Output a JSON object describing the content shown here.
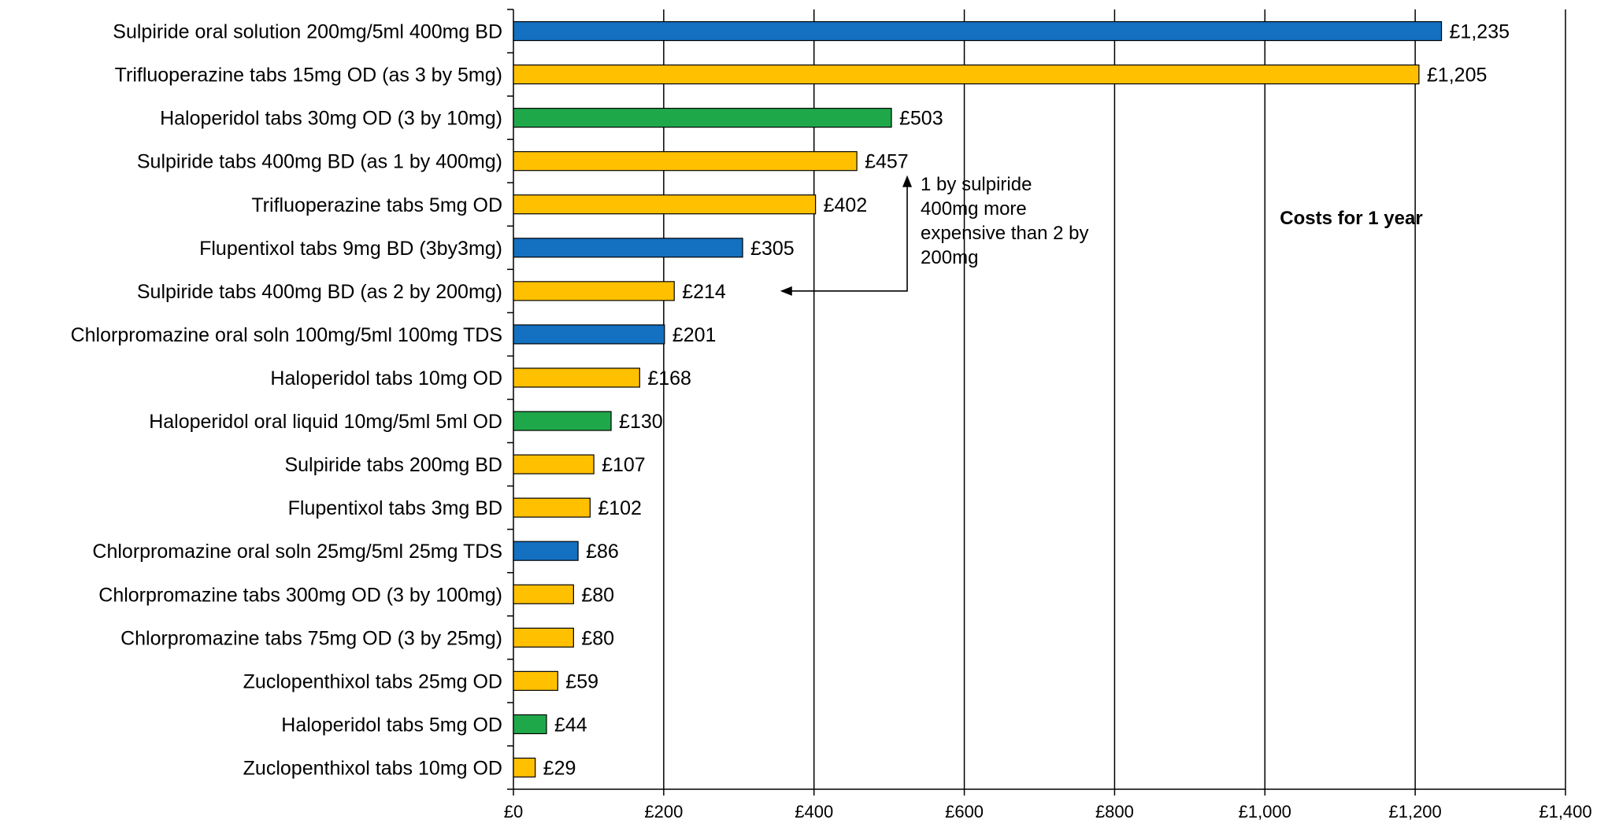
{
  "chart_data": {
    "type": "bar",
    "orientation": "horizontal",
    "title": "Costs for 1 year",
    "title_position": "inside-plot-right",
    "xlabel": "",
    "ylabel": "",
    "xlim": [
      0,
      1400
    ],
    "x_ticks": [
      0,
      200,
      400,
      600,
      800,
      1000,
      1200,
      1400
    ],
    "x_tick_labels": [
      "£0",
      "£200",
      "£400",
      "£600",
      "£800",
      "£1,000",
      "£1,200",
      "£1,400"
    ],
    "grid": "vertical-major",
    "legend": "none",
    "colors": {
      "blue": "#1470C0",
      "yellow": "#FFC000",
      "green": "#1FA84A",
      "gridline": "#000000",
      "axis": "#000000"
    },
    "bars": [
      {
        "label": "Sulpiride oral solution 200mg/5ml 400mg BD",
        "value": 1235,
        "value_label": "£1,235",
        "color": "blue"
      },
      {
        "label": "Trifluoperazine tabs 15mg OD (as 3 by 5mg)",
        "value": 1205,
        "value_label": "£1,205",
        "color": "yellow"
      },
      {
        "label": "Haloperidol tabs 30mg OD (3 by 10mg)",
        "value": 503,
        "value_label": "£503",
        "color": "green"
      },
      {
        "label": "Sulpiride tabs 400mg BD (as 1 by 400mg)",
        "value": 457,
        "value_label": "£457",
        "color": "yellow"
      },
      {
        "label": "Trifluoperazine tabs 5mg OD",
        "value": 402,
        "value_label": "£402",
        "color": "yellow"
      },
      {
        "label": "Flupentixol tabs 9mg BD (3by3mg)",
        "value": 305,
        "value_label": "£305",
        "color": "blue"
      },
      {
        "label": "Sulpiride tabs 400mg BD (as 2 by 200mg)",
        "value": 214,
        "value_label": "£214",
        "color": "yellow"
      },
      {
        "label": "Chlorpromazine oral soln 100mg/5ml 100mg TDS",
        "value": 201,
        "value_label": "£201",
        "color": "blue"
      },
      {
        "label": "Haloperidol tabs 10mg OD",
        "value": 168,
        "value_label": "£168",
        "color": "yellow"
      },
      {
        "label": "Haloperidol oral liquid 10mg/5ml 5ml OD",
        "value": 130,
        "value_label": "£130",
        "color": "green"
      },
      {
        "label": "Sulpiride tabs 200mg BD",
        "value": 107,
        "value_label": "£107",
        "color": "yellow"
      },
      {
        "label": "Flupentixol tabs 3mg BD",
        "value": 102,
        "value_label": "£102",
        "color": "yellow"
      },
      {
        "label": "Chlorpromazine oral soln 25mg/5ml 25mg TDS",
        "value": 86,
        "value_label": "£86",
        "color": "blue"
      },
      {
        "label": "Chlorpromazine tabs 300mg OD (3 by 100mg)",
        "value": 80,
        "value_label": "£80",
        "color": "yellow"
      },
      {
        "label": "Chlorpromazine tabs 75mg OD (3 by 25mg)",
        "value": 80,
        "value_label": "£80",
        "color": "yellow"
      },
      {
        "label": "Zuclopenthixol tabs 25mg OD",
        "value": 59,
        "value_label": "£59",
        "color": "yellow"
      },
      {
        "label": "Haloperidol tabs 5mg OD",
        "value": 44,
        "value_label": "£44",
        "color": "green"
      },
      {
        "label": "Zuclopenthixol tabs 10mg OD",
        "value": 29,
        "value_label": "£29",
        "color": "yellow"
      }
    ],
    "annotation": {
      "lines": [
        "1 by sulpiride",
        "400mg more",
        "expensive than 2 by",
        "200mg"
      ],
      "from_bar": "Sulpiride tabs 400mg BD (as 2 by 200mg)",
      "to_bar": "Sulpiride tabs 400mg BD (as 1 by 400mg)",
      "x_value": 524,
      "arrow_end_value": 355
    }
  }
}
